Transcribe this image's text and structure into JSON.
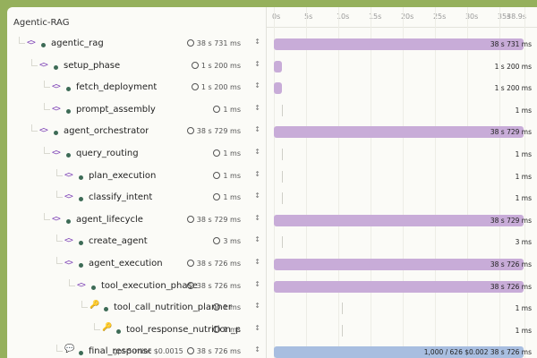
{
  "trace": {
    "title": "Agentic-RAG",
    "spans": [
      {
        "name": "agentic_rag",
        "duration": "38 s 731 ms",
        "icon": "code-icon",
        "level": 0
      },
      {
        "name": "setup_phase",
        "duration": "1 s 200 ms",
        "icon": "code-icon",
        "level": 1
      },
      {
        "name": "fetch_deployment",
        "duration": "1 s 200 ms",
        "icon": "code-icon",
        "level": 2
      },
      {
        "name": "prompt_assembly",
        "duration": "1 ms",
        "icon": "code-icon",
        "level": 2
      },
      {
        "name": "agent_orchestrator",
        "duration": "38 s 729 ms",
        "icon": "code-icon",
        "level": 1
      },
      {
        "name": "query_routing",
        "duration": "1 ms",
        "icon": "code-icon",
        "level": 2
      },
      {
        "name": "plan_execution",
        "duration": "1 ms",
        "icon": "code-icon",
        "level": 3
      },
      {
        "name": "classify_intent",
        "duration": "1 ms",
        "icon": "code-icon",
        "level": 3
      },
      {
        "name": "agent_lifecycle",
        "duration": "38 s 729 ms",
        "icon": "code-icon",
        "level": 2
      },
      {
        "name": "create_agent",
        "duration": "3 ms",
        "icon": "code-icon",
        "level": 3
      },
      {
        "name": "agent_execution",
        "duration": "38 s 726 ms",
        "icon": "code-icon",
        "level": 3
      },
      {
        "name": "tool_execution_phase",
        "duration": "38 s 726 ms",
        "icon": "code-icon",
        "level": 4
      },
      {
        "name": "tool_call_nutrition_planner",
        "duration": "1 ms",
        "icon": "key-icon",
        "level": 5
      },
      {
        "name": "tool_response_nutrition_pl...",
        "duration": "1 ms",
        "icon": "key-icon",
        "level": 6
      },
      {
        "name": "final_response",
        "duration": "38 s 726 ms",
        "icon": "chat-icon",
        "level": 3,
        "model": "gpt-5-mini",
        "cost": "$0.0015"
      }
    ]
  },
  "timeline": {
    "ticks": [
      "0s",
      "5s",
      "10s",
      "15s",
      "20s",
      "25s",
      "30s",
      "35s",
      "38.9s"
    ],
    "bars": [
      {
        "start_s": 0,
        "end_s": 38.731,
        "label": "38 s 731 ms",
        "label_inside": true
      },
      {
        "start_s": 0,
        "end_s": 1.2,
        "label": "1 s 200 ms",
        "label_inside": false
      },
      {
        "start_s": 0,
        "end_s": 1.2,
        "label": "1 s 200 ms",
        "label_inside": false
      },
      {
        "start_s": 1.2,
        "end_s": 1.201,
        "label": "1 ms",
        "label_inside": false
      },
      {
        "start_s": 0,
        "end_s": 38.729,
        "label": "38 s 729 ms",
        "label_inside": true
      },
      {
        "start_s": 1.2,
        "end_s": 1.201,
        "label": "1 ms",
        "label_inside": false
      },
      {
        "start_s": 1.2,
        "end_s": 1.201,
        "label": "1 ms",
        "label_inside": false
      },
      {
        "start_s": 1.2,
        "end_s": 1.201,
        "label": "1 ms",
        "label_inside": false
      },
      {
        "start_s": 0,
        "end_s": 38.729,
        "label": "38 s 729 ms",
        "label_inside": true
      },
      {
        "start_s": 1.2,
        "end_s": 1.203,
        "label": "3 ms",
        "label_inside": false
      },
      {
        "start_s": 0,
        "end_s": 38.726,
        "label": "38 s 726 ms",
        "label_inside": true
      },
      {
        "start_s": 0,
        "end_s": 38.726,
        "label": "38 s 726 ms",
        "label_inside": true
      },
      {
        "start_s": 10.5,
        "end_s": 10.501,
        "label": "1 ms",
        "label_inside": false
      },
      {
        "start_s": 10.5,
        "end_s": 10.501,
        "label": "1 ms",
        "label_inside": false
      },
      {
        "start_s": 0,
        "end_s": 38.726,
        "label": "1,000 / 626  $0.002  38 s 726 ms",
        "label_inside": true,
        "blue": true
      }
    ]
  },
  "colors": {
    "accent_purple": "#c8acd8",
    "accent_blue": "#a8bee0",
    "background": "#95b05c"
  }
}
